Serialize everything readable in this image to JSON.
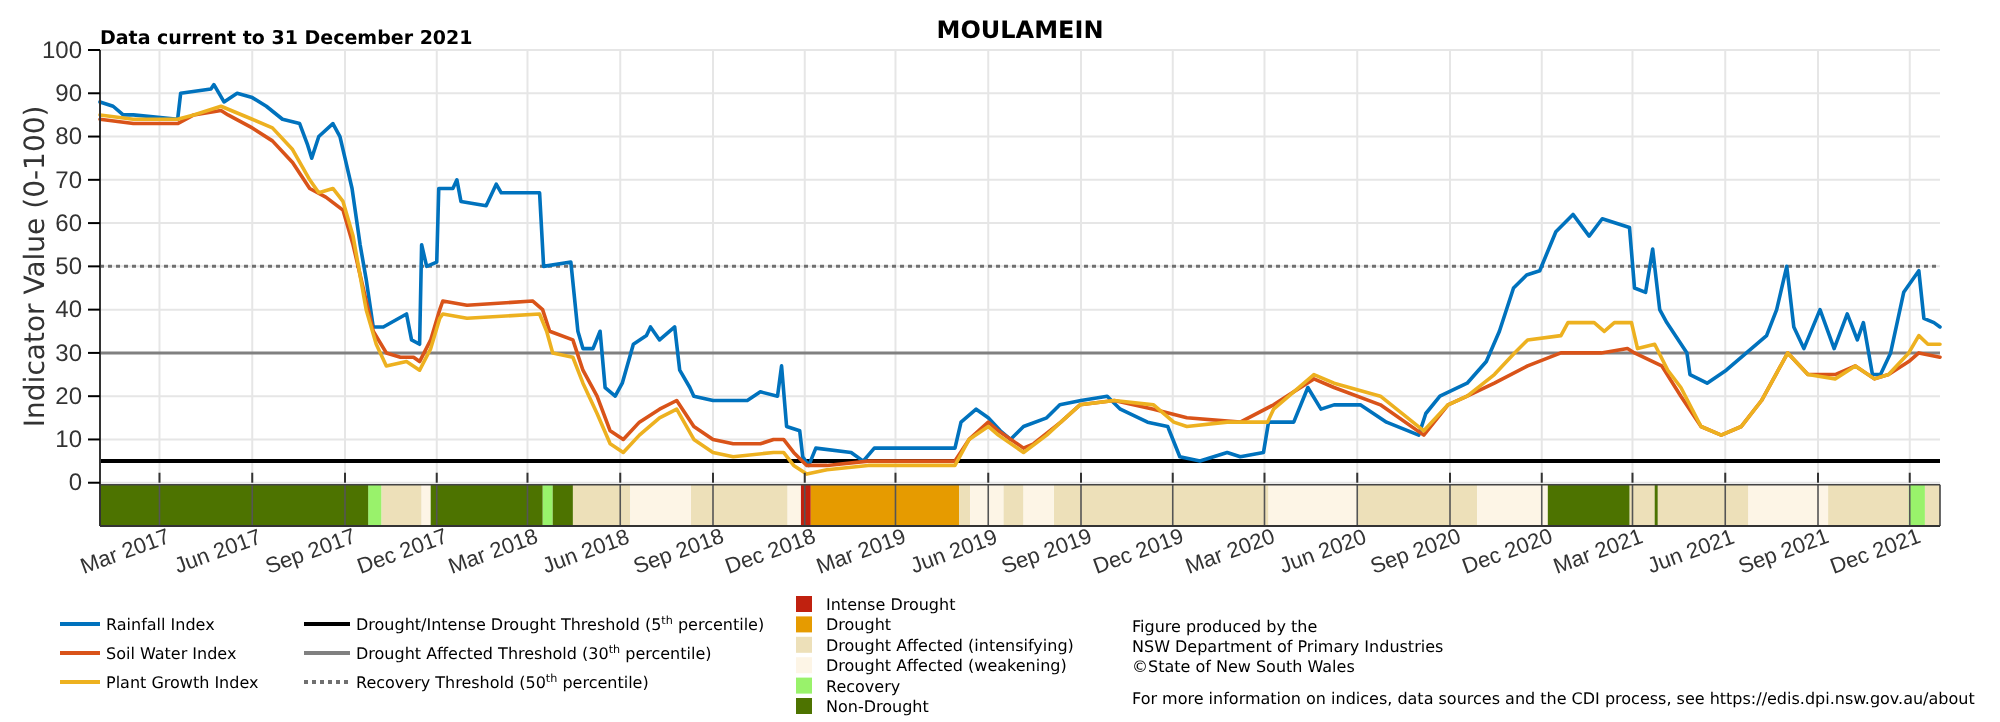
{
  "chart_data": {
    "type": "line",
    "title": "MOULAMEIN",
    "ylabel": "Indicator Value (0-100)",
    "xlim": [
      "2017-01-01",
      "2021-12-31"
    ],
    "xticks": [
      {
        "value": "2017-03-01",
        "label": "Mar 2017"
      },
      {
        "value": "2017-06-01",
        "label": "Jun 2017"
      },
      {
        "value": "2017-09-01",
        "label": "Sep 2017"
      },
      {
        "value": "2017-12-01",
        "label": "Dec 2017"
      },
      {
        "value": "2018-03-01",
        "label": "Mar 2018"
      },
      {
        "value": "2018-06-01",
        "label": "Jun 2018"
      },
      {
        "value": "2018-09-01",
        "label": "Sep 2018"
      },
      {
        "value": "2018-12-01",
        "label": "Dec 2018"
      },
      {
        "value": "2019-03-01",
        "label": "Mar 2019"
      },
      {
        "value": "2019-06-01",
        "label": "Jun 2019"
      },
      {
        "value": "2019-09-01",
        "label": "Sep 2019"
      },
      {
        "value": "2019-12-01",
        "label": "Dec 2019"
      },
      {
        "value": "2020-03-01",
        "label": "Mar 2020"
      },
      {
        "value": "2020-06-01",
        "label": "Jun 2020"
      },
      {
        "value": "2020-09-01",
        "label": "Sep 2020"
      },
      {
        "value": "2020-12-01",
        "label": "Dec 2020"
      },
      {
        "value": "2021-03-01",
        "label": "Mar 2021"
      },
      {
        "value": "2021-06-01",
        "label": "Jun 2021"
      },
      {
        "value": "2021-09-01",
        "label": "Sep 2021"
      },
      {
        "value": "2021-12-01",
        "label": "Dec 2021"
      }
    ],
    "ylim": [
      -10,
      100
    ],
    "yticks": [
      0,
      10,
      20,
      30,
      40,
      50,
      60,
      70,
      80,
      90,
      100
    ],
    "grid": true,
    "legend": "bottom",
    "series": [
      {
        "name": "Rainfall Index",
        "color": "#0072bd",
        "x": [
          "2017-01-01",
          "2017-01-14",
          "2017-01-24",
          "2017-02-03",
          "2017-03-19",
          "2017-03-22",
          "2017-04-21",
          "2017-04-24",
          "2017-05-04",
          "2017-05-17",
          "2017-06-01",
          "2017-06-15",
          "2017-07-01",
          "2017-07-18",
          "2017-07-26",
          "2017-07-30",
          "2017-08-06",
          "2017-08-20",
          "2017-08-27",
          "2017-09-01",
          "2017-09-08",
          "2017-09-16",
          "2017-09-22",
          "2017-09-29",
          "2017-10-09",
          "2017-11-01",
          "2017-11-06",
          "2017-11-14",
          "2017-11-16",
          "2017-11-21",
          "2017-12-01",
          "2017-12-03",
          "2017-12-17",
          "2017-12-21",
          "2017-12-25",
          "2018-01-19",
          "2018-01-29",
          "2018-02-03",
          "2018-03-13",
          "2018-03-17",
          "2018-04-13",
          "2018-04-20",
          "2018-04-25",
          "2018-05-05",
          "2018-05-12",
          "2018-05-17",
          "2018-05-27",
          "2018-06-03",
          "2018-06-14",
          "2018-06-27",
          "2018-07-01",
          "2018-07-10",
          "2018-07-25",
          "2018-07-30",
          "2018-08-09",
          "2018-08-13",
          "2018-09-01",
          "2018-10-05",
          "2018-10-18",
          "2018-11-04",
          "2018-11-08",
          "2018-11-13",
          "2018-11-26",
          "2018-11-29",
          "2018-12-05",
          "2018-12-12",
          "2019-01-16",
          "2019-01-28",
          "2019-02-08",
          "2019-04-29",
          "2019-05-05",
          "2019-05-20",
          "2019-06-01",
          "2019-06-13",
          "2019-06-23",
          "2019-07-06",
          "2019-07-29",
          "2019-08-11",
          "2019-09-01",
          "2019-09-27",
          "2019-10-10",
          "2019-11-06",
          "2019-11-26",
          "2019-12-08",
          "2019-12-28",
          "2020-01-24",
          "2020-02-06",
          "2020-02-29",
          "2020-03-05",
          "2020-03-30",
          "2020-04-13",
          "2020-04-26",
          "2020-05-09",
          "2020-06-04",
          "2020-06-30",
          "2020-08-01",
          "2020-08-08",
          "2020-08-22",
          "2020-09-18",
          "2020-10-07",
          "2020-10-20",
          "2020-11-03",
          "2020-11-16",
          "2020-11-29",
          "2020-12-15",
          "2021-01-01",
          "2021-01-17",
          "2021-01-30",
          "2021-02-26",
          "2021-03-03",
          "2021-03-14",
          "2021-03-21",
          "2021-03-28",
          "2021-04-04",
          "2021-04-24",
          "2021-04-27",
          "2021-05-14",
          "2021-06-02",
          "2021-06-22",
          "2021-07-12",
          "2021-07-22",
          "2021-08-01",
          "2021-08-08",
          "2021-08-18",
          "2021-09-03",
          "2021-09-17",
          "2021-09-30",
          "2021-10-10",
          "2021-10-16",
          "2021-10-25",
          "2021-11-02",
          "2021-11-12",
          "2021-11-25",
          "2021-12-10",
          "2021-12-15",
          "2021-12-25",
          "2021-12-31"
        ],
        "values": [
          88,
          87,
          85,
          85,
          84,
          90,
          91,
          92,
          88,
          90,
          89,
          87,
          84,
          83,
          78,
          75,
          80,
          83,
          80,
          75,
          68,
          55,
          47,
          36,
          36,
          39,
          33,
          32,
          55,
          50,
          51,
          68,
          68,
          70,
          65,
          64,
          69,
          67,
          67,
          50,
          51,
          35,
          31,
          31,
          35,
          22,
          20,
          23,
          32,
          34,
          36,
          33,
          36,
          26,
          22,
          20,
          19,
          19,
          21,
          20,
          27,
          13,
          12,
          6,
          4,
          8,
          7,
          5,
          8,
          8,
          14,
          17,
          15,
          12,
          10,
          13,
          15,
          18,
          19,
          20,
          17,
          14,
          13,
          6,
          5,
          7,
          6,
          7,
          14,
          14,
          22,
          17,
          18,
          18,
          14,
          11,
          16,
          20,
          23,
          28,
          35,
          45,
          48,
          49,
          58,
          62,
          57,
          61,
          59,
          45,
          44,
          54,
          40,
          37,
          30,
          25,
          23,
          26,
          30,
          34,
          40,
          50,
          36,
          31,
          40,
          31,
          39,
          33,
          37,
          25,
          25,
          30,
          44,
          49,
          38,
          37,
          36
        ]
      },
      {
        "name": "Soil Water Index",
        "color": "#d95319",
        "x": [
          "2017-01-01",
          "2017-02-03",
          "2017-03-19",
          "2017-04-04",
          "2017-05-01",
          "2017-05-08",
          "2017-06-01",
          "2017-06-21",
          "2017-07-11",
          "2017-07-28",
          "2017-08-13",
          "2017-08-30",
          "2017-09-09",
          "2017-09-19",
          "2017-09-29",
          "2017-10-12",
          "2017-10-26",
          "2017-11-08",
          "2017-11-14",
          "2017-11-25",
          "2017-12-04",
          "2017-12-07",
          "2017-12-31",
          "2018-03-06",
          "2018-03-16",
          "2018-03-23",
          "2018-04-15",
          "2018-04-25",
          "2018-05-09",
          "2018-05-22",
          "2018-06-04",
          "2018-06-20",
          "2018-07-10",
          "2018-07-27",
          "2018-08-13",
          "2018-09-01",
          "2018-09-21",
          "2018-10-18",
          "2018-10-31",
          "2018-11-10",
          "2018-11-20",
          "2018-12-03",
          "2018-12-23",
          "2019-02-02",
          "2019-04-29",
          "2019-05-13",
          "2019-06-01",
          "2019-06-11",
          "2019-07-06",
          "2019-07-16",
          "2019-08-12",
          "2019-08-31",
          "2019-10-04",
          "2019-11-12",
          "2019-12-15",
          "2020-02-06",
          "2020-03-10",
          "2020-04-19",
          "2020-05-09",
          "2020-06-24",
          "2020-08-06",
          "2020-08-30",
          "2020-09-18",
          "2020-10-15",
          "2020-11-17",
          "2020-12-20",
          "2021-01-29",
          "2021-02-24",
          "2021-03-03",
          "2021-03-30",
          "2021-04-18",
          "2021-05-08",
          "2021-05-28",
          "2021-06-17",
          "2021-07-07",
          "2021-08-02",
          "2021-08-22",
          "2021-09-18",
          "2021-10-08",
          "2021-10-27",
          "2021-11-10",
          "2021-11-30",
          "2021-12-10",
          "2021-12-31"
        ],
        "values": [
          84,
          83,
          83,
          85,
          86,
          85,
          82,
          79,
          74,
          68,
          66,
          63,
          55,
          45,
          35,
          30,
          29,
          29,
          28,
          33,
          40,
          42,
          41,
          42,
          40,
          35,
          33,
          26,
          20,
          12,
          10,
          14,
          17,
          19,
          13,
          10,
          9,
          9,
          10,
          10,
          7,
          4,
          4,
          5,
          5,
          10,
          14,
          12,
          8,
          9,
          14,
          18,
          19,
          17,
          15,
          14,
          18,
          24,
          22,
          18,
          11,
          18,
          20,
          23,
          27,
          30,
          30,
          31,
          30,
          27,
          20,
          13,
          11,
          13,
          19,
          30,
          25,
          25,
          27,
          24,
          25,
          28,
          30,
          29
        ]
      },
      {
        "name": "Plant Growth Index",
        "color": "#edb120",
        "x": [
          "2017-01-01",
          "2017-02-03",
          "2017-03-19",
          "2017-04-04",
          "2017-05-01",
          "2017-06-01",
          "2017-06-21",
          "2017-07-11",
          "2017-07-28",
          "2017-08-06",
          "2017-08-20",
          "2017-08-30",
          "2017-09-09",
          "2017-09-22",
          "2017-10-02",
          "2017-10-12",
          "2017-11-01",
          "2017-11-14",
          "2017-11-25",
          "2017-12-04",
          "2017-12-07",
          "2017-12-31",
          "2018-03-13",
          "2018-03-20",
          "2018-03-26",
          "2018-04-15",
          "2018-04-25",
          "2018-05-09",
          "2018-05-22",
          "2018-06-04",
          "2018-06-20",
          "2018-07-10",
          "2018-07-27",
          "2018-08-13",
          "2018-09-01",
          "2018-09-21",
          "2018-10-31",
          "2018-11-10",
          "2018-11-20",
          "2018-12-03",
          "2018-12-23",
          "2019-02-02",
          "2019-04-29",
          "2019-05-13",
          "2019-06-01",
          "2019-06-11",
          "2019-07-06",
          "2019-07-29",
          "2019-08-12",
          "2019-08-31",
          "2019-10-04",
          "2019-11-12",
          "2019-12-02",
          "2019-12-15",
          "2020-01-24",
          "2020-02-06",
          "2020-03-04",
          "2020-03-10",
          "2020-04-19",
          "2020-05-09",
          "2020-06-24",
          "2020-08-06",
          "2020-08-30",
          "2020-09-18",
          "2020-10-15",
          "2020-11-04",
          "2020-11-17",
          "2020-12-20",
          "2020-12-27",
          "2021-01-22",
          "2021-02-01",
          "2021-02-11",
          "2021-02-28",
          "2021-03-06",
          "2021-03-23",
          "2021-04-05",
          "2021-04-18",
          "2021-05-08",
          "2021-05-28",
          "2021-06-17",
          "2021-07-07",
          "2021-08-02",
          "2021-08-22",
          "2021-09-18",
          "2021-10-08",
          "2021-10-27",
          "2021-11-10",
          "2021-11-30",
          "2021-12-10",
          "2021-12-19",
          "2021-12-31"
        ],
        "values": [
          85,
          84,
          84,
          85,
          87,
          84,
          82,
          77,
          70,
          67,
          68,
          65,
          57,
          40,
          32,
          27,
          28,
          26,
          31,
          38,
          39,
          38,
          39,
          35,
          30,
          29,
          23,
          16,
          9,
          7,
          11,
          15,
          17,
          10,
          7,
          6,
          7,
          7,
          4,
          2,
          3,
          4,
          4,
          10,
          13,
          11,
          7,
          11,
          14,
          18,
          19,
          18,
          14,
          13,
          14,
          14,
          14,
          17,
          25,
          23,
          20,
          12,
          18,
          20,
          25,
          30,
          33,
          34,
          37,
          37,
          35,
          37,
          37,
          31,
          32,
          26,
          22,
          13,
          11,
          13,
          19,
          30,
          25,
          24,
          27,
          24,
          25,
          30,
          34,
          32,
          32
        ]
      }
    ],
    "ref_lines": [
      {
        "axis": "y",
        "value": 5,
        "label": "Drought/Intense Drought Threshold (5$^{th}$ percentile)",
        "color": "#000000",
        "line_style": "solid"
      },
      {
        "axis": "y",
        "value": 30,
        "label": "Drought Affected Threshold (30$^{th}$ percentile)",
        "color": "#808080",
        "line_style": "solid"
      },
      {
        "axis": "y",
        "value": 50,
        "label": "Recovery Threshold (50$^{th}$ percentile)",
        "color": "#707070",
        "line_style": "dotted"
      }
    ],
    "bands": [
      {
        "axis": "x",
        "from": "2018-11-27",
        "to": "2018-12-07",
        "label": "Intense Drought",
        "color": "#c0210f"
      },
      {
        "axis": "x",
        "from": "2018-12-07",
        "to": "2019-05-03",
        "label": "Drought",
        "color": "#e69b00"
      },
      {
        "axis": "x",
        "from": "2017-10-07",
        "to": "2017-11-16",
        "label": "Drought Affected (intensifying)",
        "color": "#ede0b9"
      },
      {
        "axis": "x",
        "from": "2018-04-15",
        "to": "2018-06-11",
        "color": "#ede0b9"
      },
      {
        "axis": "x",
        "from": "2018-08-10",
        "to": "2018-11-14",
        "color": "#ede0b9"
      },
      {
        "axis": "x",
        "from": "2019-05-03",
        "to": "2019-05-14",
        "color": "#ede0b9"
      },
      {
        "axis": "x",
        "from": "2019-06-16",
        "to": "2019-07-06",
        "color": "#ede0b9"
      },
      {
        "axis": "x",
        "from": "2019-08-05",
        "to": "2020-03-05",
        "color": "#ede0b9"
      },
      {
        "axis": "x",
        "from": "2020-06-01",
        "to": "2020-09-28",
        "color": "#ede0b9"
      },
      {
        "axis": "x",
        "from": "2021-02-26",
        "to": "2021-03-23",
        "color": "#ede0b9"
      },
      {
        "axis": "x",
        "from": "2021-03-26",
        "to": "2021-06-24",
        "color": "#ede0b9"
      },
      {
        "axis": "x",
        "from": "2021-09-11",
        "to": "2021-11-30",
        "color": "#ede0b9"
      },
      {
        "axis": "x",
        "from": "2021-12-16",
        "to": "2021-12-31",
        "color": "#ede0b9"
      },
      {
        "axis": "x",
        "from": "2017-11-16",
        "to": "2017-11-25",
        "label": "Drought Affected (weakening)",
        "color": "#fdf5e6"
      },
      {
        "axis": "x",
        "from": "2018-06-11",
        "to": "2018-08-10",
        "color": "#fdf5e6"
      },
      {
        "axis": "x",
        "from": "2018-11-14",
        "to": "2018-11-27",
        "color": "#fdf5e6"
      },
      {
        "axis": "x",
        "from": "2019-05-14",
        "to": "2019-06-16",
        "color": "#fdf5e6"
      },
      {
        "axis": "x",
        "from": "2019-07-06",
        "to": "2019-08-05",
        "color": "#fdf5e6"
      },
      {
        "axis": "x",
        "from": "2020-03-05",
        "to": "2020-06-01",
        "color": "#fdf5e6"
      },
      {
        "axis": "x",
        "from": "2020-09-28",
        "to": "2020-12-07",
        "color": "#fdf5e6"
      },
      {
        "axis": "x",
        "from": "2021-06-24",
        "to": "2021-09-11",
        "color": "#fdf5e6"
      },
      {
        "axis": "x",
        "from": "2017-09-24",
        "to": "2017-10-07",
        "label": "Recovery",
        "color": "#99f26b"
      },
      {
        "axis": "x",
        "from": "2018-03-16",
        "to": "2018-03-26",
        "color": "#99f26b"
      },
      {
        "axis": "x",
        "from": "2021-11-30",
        "to": "2021-12-16",
        "color": "#99f26b"
      },
      {
        "axis": "x",
        "from": "2017-01-01",
        "to": "2017-09-24",
        "label": "Non-Drought",
        "color": "#4d7300"
      },
      {
        "axis": "x",
        "from": "2017-11-25",
        "to": "2018-03-16",
        "color": "#4d7300"
      },
      {
        "axis": "x",
        "from": "2018-03-26",
        "to": "2018-04-15",
        "color": "#4d7300"
      },
      {
        "axis": "x",
        "from": "2020-12-07",
        "to": "2021-02-26",
        "color": "#4d7300"
      },
      {
        "axis": "x",
        "from": "2021-03-23",
        "to": "2021-03-26",
        "color": "#4d7300"
      }
    ],
    "annotations": [
      "Data current to 31 December 2021",
      "Figure produced by the",
      "NSW Department of Primary Industries",
      "©State of New South Wales",
      "For more information on indices, data sources and the CDI process, see https://edis.dpi.nsw.gov.au/about"
    ]
  }
}
